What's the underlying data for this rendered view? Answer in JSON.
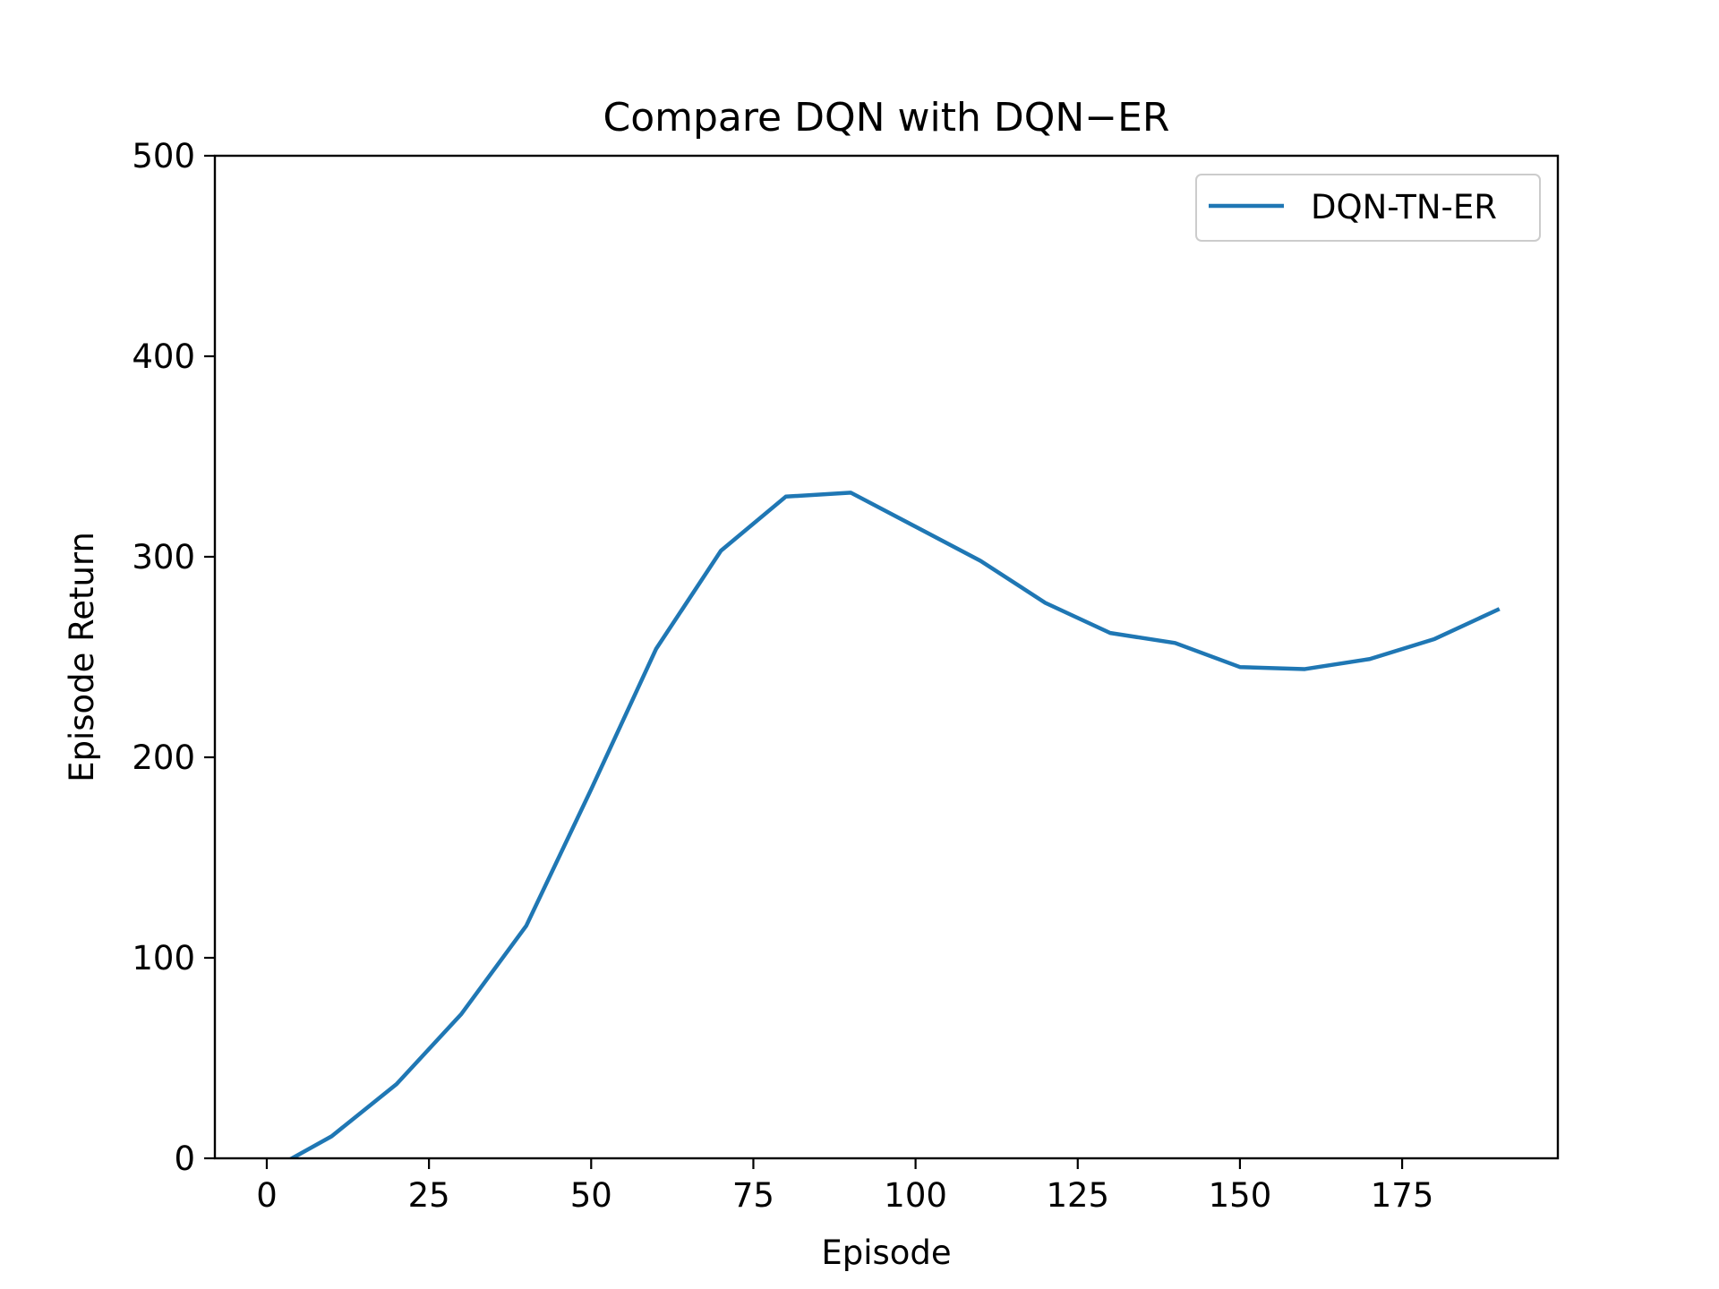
{
  "chart_data": {
    "type": "line",
    "title": "Compare DQN with DQN−ER",
    "xlabel": "Episode",
    "ylabel": "Episode Return",
    "xlim": [
      -8,
      199
    ],
    "ylim": [
      0,
      500
    ],
    "xticks": [
      0,
      25,
      50,
      75,
      100,
      125,
      150,
      175
    ],
    "yticks": [
      0,
      100,
      200,
      300,
      400,
      500
    ],
    "grid": false,
    "legend_position": "upper right",
    "series": [
      {
        "name": "DQN-TN-ER",
        "color": "#1f77b4",
        "x": [
          0,
          10,
          20,
          30,
          40,
          50,
          60,
          70,
          80,
          90,
          100,
          110,
          120,
          130,
          140,
          150,
          160,
          170,
          180,
          190
        ],
        "y": [
          -7,
          11,
          37,
          72,
          116,
          184,
          254,
          303,
          330,
          332,
          315,
          298,
          277,
          262,
          257,
          245,
          244,
          249,
          259,
          274
        ]
      }
    ]
  }
}
